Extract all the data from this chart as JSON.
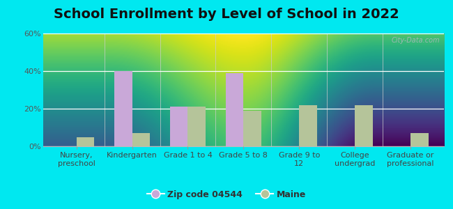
{
  "title": "School Enrollment by Level of School in 2022",
  "categories": [
    "Nursery,\npreschool",
    "Kindergarten",
    "Grade 1 to 4",
    "Grade 5 to 8",
    "Grade 9 to\n12",
    "College\nundergrad",
    "Graduate or\nprofessional"
  ],
  "zip_values": [
    0,
    40,
    21,
    39,
    0,
    0,
    0
  ],
  "maine_values": [
    5,
    7,
    21,
    19,
    22,
    22,
    7
  ],
  "zip_color": "#c9a8d8",
  "maine_color": "#b5c49a",
  "zip_label": "Zip code 04544",
  "maine_label": "Maine",
  "ylim": [
    0,
    60
  ],
  "yticks": [
    0,
    20,
    40,
    60
  ],
  "ytick_labels": [
    "0%",
    "20%",
    "40%",
    "60%"
  ],
  "bg_outer": "#00e8f0",
  "watermark": "City-Data.com",
  "title_fontsize": 14,
  "tick_fontsize": 8,
  "legend_fontsize": 9,
  "bar_width": 0.32,
  "gradient_top": "#f5faf0",
  "gradient_bottom": "#e0efd5"
}
